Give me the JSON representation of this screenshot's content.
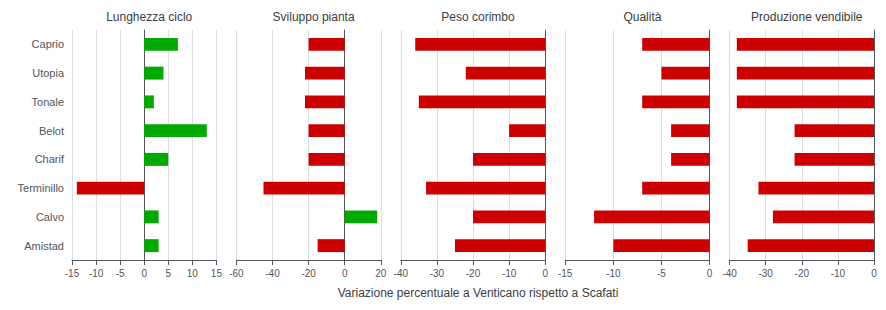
{
  "chart_data": [
    {
      "type": "bar",
      "orientation": "horizontal",
      "title": "Lunghezza ciclo",
      "categories": [
        "Caprio",
        "Utopia",
        "Tonale",
        "Belot",
        "Charif",
        "Terminillo",
        "Calvo",
        "Amistad"
      ],
      "values": [
        7,
        4,
        2,
        13,
        5,
        -14,
        3,
        3
      ],
      "colors": [
        "#00aa00",
        "#00aa00",
        "#00aa00",
        "#00aa00",
        "#00aa00",
        "#cc0000",
        "#00aa00",
        "#00aa00"
      ],
      "xlim": [
        -15,
        15
      ],
      "xticks": [
        -15,
        -10,
        -5,
        0,
        5,
        10,
        15
      ],
      "grid": true
    },
    {
      "type": "bar",
      "orientation": "horizontal",
      "title": "Sviluppo pianta",
      "categories": [
        "Caprio",
        "Utopia",
        "Tonale",
        "Belot",
        "Charif",
        "Terminillo",
        "Calvo",
        "Amistad"
      ],
      "values": [
        -20,
        -22,
        -22,
        -20,
        -20,
        -45,
        18,
        -15
      ],
      "colors": [
        "#cc0000",
        "#cc0000",
        "#cc0000",
        "#cc0000",
        "#cc0000",
        "#cc0000",
        "#00aa00",
        "#cc0000"
      ],
      "xlim": [
        -60,
        20
      ],
      "xticks": [
        -60,
        -40,
        -20,
        0,
        20
      ],
      "grid": true,
      "tick_labels": "x"
    },
    {
      "type": "bar",
      "orientation": "horizontal",
      "title": "Peso corimbo",
      "xlabel": "Variazione percentuale a Venticano rispetto a Scafati",
      "categories": [
        "Caprio",
        "Utopia",
        "Tonale",
        "Belot",
        "Charif",
        "Terminillo",
        "Calvo",
        "Amistad"
      ],
      "values": [
        -36,
        -22,
        -35,
        -10,
        -20,
        -33,
        -20,
        -25
      ],
      "colors": [
        "#cc0000",
        "#cc0000",
        "#cc0000",
        "#cc0000",
        "#cc0000",
        "#cc0000",
        "#cc0000",
        "#cc0000"
      ],
      "xlim": [
        -40,
        0
      ],
      "xticks": [
        -40,
        -30,
        -20,
        -10,
        0
      ],
      "grid": true,
      "tick_labels": "x"
    },
    {
      "type": "bar",
      "orientation": "horizontal",
      "title": "Qualità",
      "categories": [
        "Caprio",
        "Utopia",
        "Tonale",
        "Belot",
        "Charif",
        "Terminillo",
        "Calvo",
        "Amistad"
      ],
      "values": [
        -7,
        -5,
        -7,
        -4,
        -4,
        -7,
        -12,
        -10
      ],
      "colors": [
        "#cc0000",
        "#cc0000",
        "#cc0000",
        "#cc0000",
        "#cc0000",
        "#cc0000",
        "#cc0000",
        "#cc0000"
      ],
      "xlim": [
        -15,
        0
      ],
      "xticks": [
        -15,
        -10,
        -5,
        0
      ],
      "grid": true,
      "tick_labels": "x"
    },
    {
      "type": "bar",
      "orientation": "horizontal",
      "title": "Produzione vendibile",
      "categories": [
        "Caprio",
        "Utopia",
        "Tonale",
        "Belot",
        "Charif",
        "Terminillo",
        "Calvo",
        "Amistad"
      ],
      "values": [
        -38,
        -38,
        -38,
        -22,
        -22,
        -32,
        -28,
        -35
      ],
      "colors": [
        "#cc0000",
        "#cc0000",
        "#cc0000",
        "#cc0000",
        "#cc0000",
        "#cc0000",
        "#cc0000",
        "#cc0000"
      ],
      "xlim": [
        -40,
        0
      ],
      "xticks": [
        -40,
        -30,
        -20,
        -10,
        0
      ],
      "grid": true,
      "tick_labels": "x"
    }
  ]
}
